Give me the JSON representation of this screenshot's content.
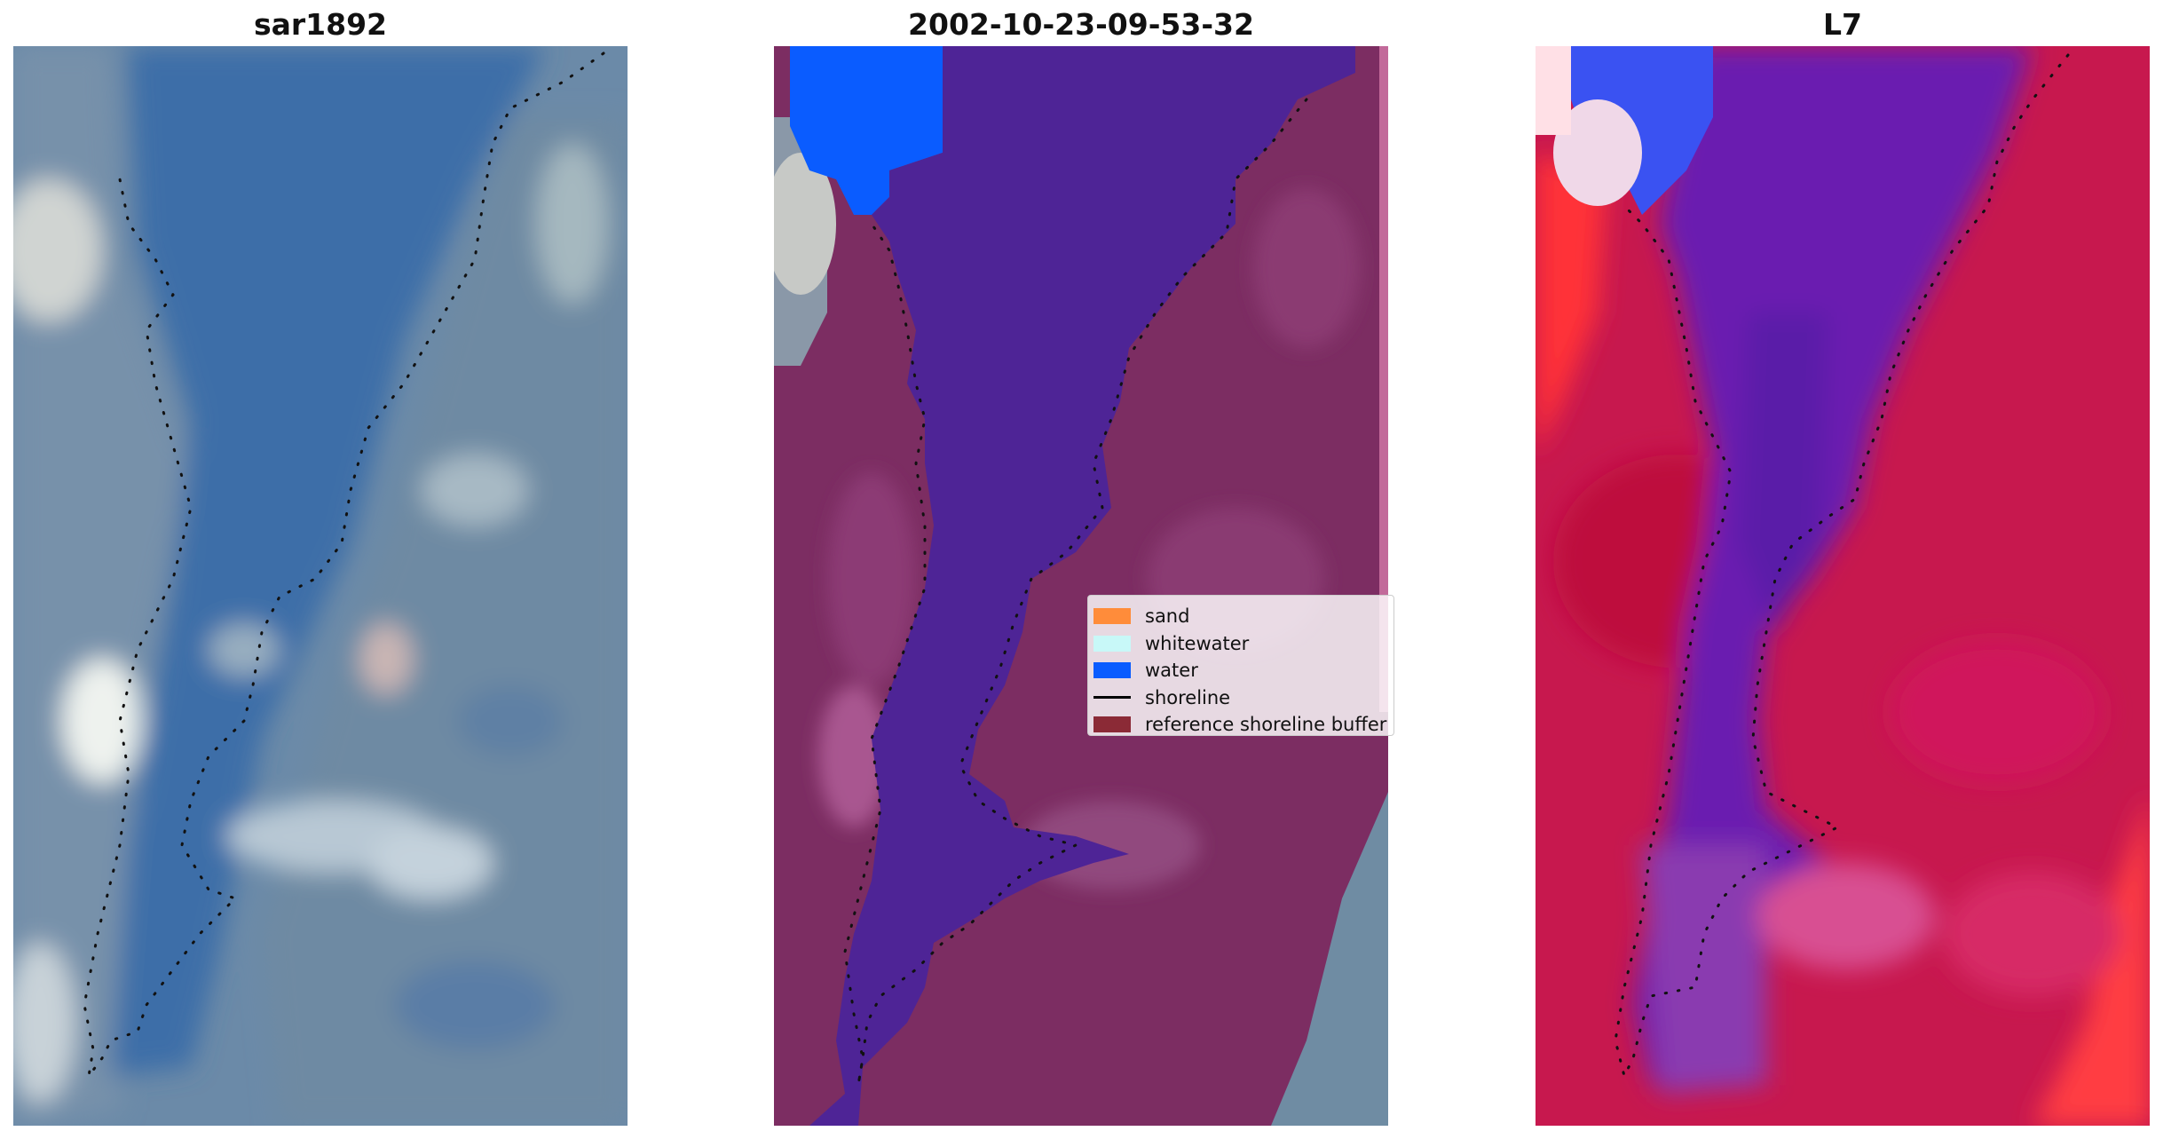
{
  "panels": [
    {
      "title": "sar1892"
    },
    {
      "title": "2002-10-23-09-53-32"
    },
    {
      "title": "L7"
    }
  ],
  "legend": {
    "items": [
      {
        "label": "sand",
        "color": "#ff8c3a",
        "kind": "patch"
      },
      {
        "label": "whitewater",
        "color": "#c8f8f8",
        "kind": "patch"
      },
      {
        "label": "water",
        "color": "#0a5cff",
        "kind": "patch"
      },
      {
        "label": "shoreline",
        "color": "#000000",
        "kind": "line"
      },
      {
        "label": "reference shoreline buffer",
        "color": "#8b2a36",
        "kind": "patch"
      }
    ]
  },
  "colors": {
    "rgb_water": "#3f6fa8",
    "rgb_land": "#6f8fa8",
    "class_water": "#4e2496",
    "class_land": "#7c2d62",
    "class_water_blue": "#0a5cff",
    "fc_water": "#6a1fb0",
    "fc_land": "#c7184e",
    "fc_bright_red": "#ff3a40",
    "fc_blue": "#3a52f2"
  }
}
